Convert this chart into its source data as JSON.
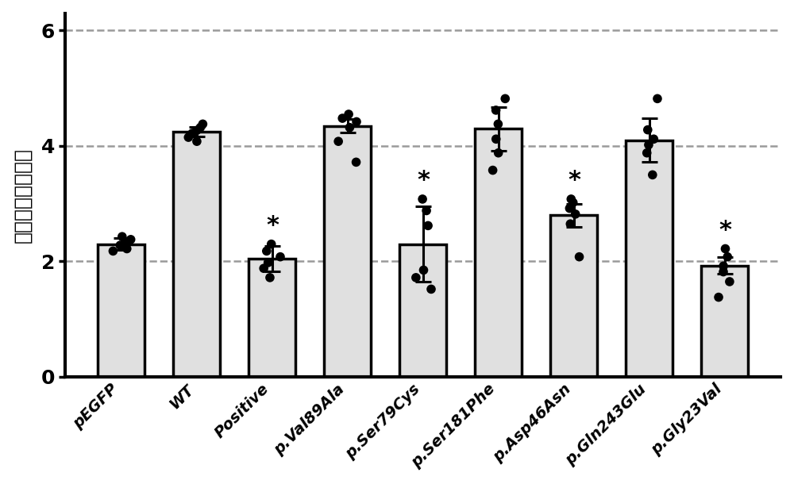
{
  "categories": [
    "pEGFP",
    "WT",
    "Positive",
    "p.Val89Ala",
    "p.Ser79Cys",
    "p.Ser181Phe",
    "p.Asp46Asn",
    "p.Gln243Glu",
    "p.Gly23Val"
  ],
  "bar_means": [
    2.3,
    4.25,
    2.05,
    4.35,
    2.3,
    4.3,
    2.8,
    4.1,
    1.93
  ],
  "bar_errors": [
    0.1,
    0.08,
    0.22,
    0.12,
    0.65,
    0.38,
    0.2,
    0.38,
    0.14
  ],
  "bar_color": "#e0e0e0",
  "bar_edgecolor": "#000000",
  "dot_color": "#000000",
  "asterisk_labels": [
    false,
    false,
    true,
    false,
    true,
    false,
    true,
    false,
    true
  ],
  "dot_data": [
    [
      2.18,
      2.22,
      2.28,
      2.33,
      2.38,
      2.43
    ],
    [
      4.08,
      4.15,
      4.22,
      4.27,
      4.32,
      4.38
    ],
    [
      1.72,
      1.88,
      1.98,
      2.08,
      2.18,
      2.3
    ],
    [
      3.72,
      4.08,
      4.32,
      4.42,
      4.48,
      4.55
    ],
    [
      1.52,
      1.72,
      1.85,
      2.62,
      2.88,
      3.08
    ],
    [
      3.58,
      3.88,
      4.12,
      4.38,
      4.62,
      4.82
    ],
    [
      2.08,
      2.65,
      2.82,
      2.92,
      3.02,
      3.08
    ],
    [
      3.5,
      3.88,
      4.02,
      4.12,
      4.28,
      4.82
    ],
    [
      1.38,
      1.65,
      1.82,
      1.92,
      2.08,
      2.22
    ]
  ],
  "ylabel": "相对荧光素酶活性",
  "ylim": [
    0,
    6.3
  ],
  "yticks": [
    0,
    2,
    4,
    6
  ],
  "hlines": [
    2.0,
    4.0,
    6.0
  ],
  "background_color": "#ffffff",
  "spine_linewidth": 3.0,
  "bar_linewidth": 2.5,
  "errorbar_linewidth": 2.2,
  "errorbar_capsize": 7,
  "dot_size": 70,
  "asterisk_fontsize": 22,
  "tick_label_fontsize": 14,
  "ylabel_fontsize": 18,
  "ytick_fontsize": 18
}
